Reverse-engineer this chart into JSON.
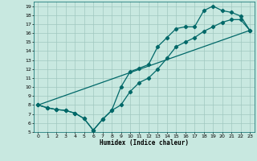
{
  "xlabel": "Humidex (Indice chaleur)",
  "bg_color": "#c8e8e0",
  "grid_color": "#a0c8c0",
  "line_color": "#006868",
  "xlim": [
    -0.5,
    23.5
  ],
  "ylim": [
    5,
    19.5
  ],
  "xticks": [
    0,
    1,
    2,
    3,
    4,
    5,
    6,
    7,
    8,
    9,
    10,
    11,
    12,
    13,
    14,
    15,
    16,
    17,
    18,
    19,
    20,
    21,
    22,
    23
  ],
  "yticks": [
    5,
    6,
    7,
    8,
    9,
    10,
    11,
    12,
    13,
    14,
    15,
    16,
    17,
    18,
    19
  ],
  "line1_x": [
    0,
    1,
    2,
    3,
    4,
    5,
    6,
    7,
    8,
    9,
    10,
    11,
    12,
    13,
    14,
    15,
    16,
    17,
    18,
    19,
    20,
    21,
    22,
    23
  ],
  "line1_y": [
    8.0,
    7.7,
    7.5,
    7.4,
    7.1,
    6.5,
    5.2,
    6.4,
    7.4,
    10.0,
    11.7,
    12.1,
    12.5,
    14.5,
    15.5,
    16.5,
    16.7,
    16.7,
    18.5,
    19.0,
    18.5,
    18.3,
    17.9,
    16.3
  ],
  "line2_x": [
    0,
    1,
    2,
    3,
    4,
    5,
    6,
    7,
    8,
    9,
    10,
    11,
    12,
    13,
    14,
    15,
    16,
    17,
    18,
    19,
    20,
    21,
    22,
    23
  ],
  "line2_y": [
    8.0,
    7.7,
    7.5,
    7.4,
    7.1,
    6.5,
    5.2,
    6.4,
    7.4,
    8.0,
    9.5,
    10.5,
    11.0,
    12.0,
    13.2,
    14.5,
    15.0,
    15.5,
    16.2,
    16.7,
    17.2,
    17.5,
    17.5,
    16.3
  ],
  "line3_x": [
    0,
    23
  ],
  "line3_y": [
    8.0,
    16.3
  ]
}
